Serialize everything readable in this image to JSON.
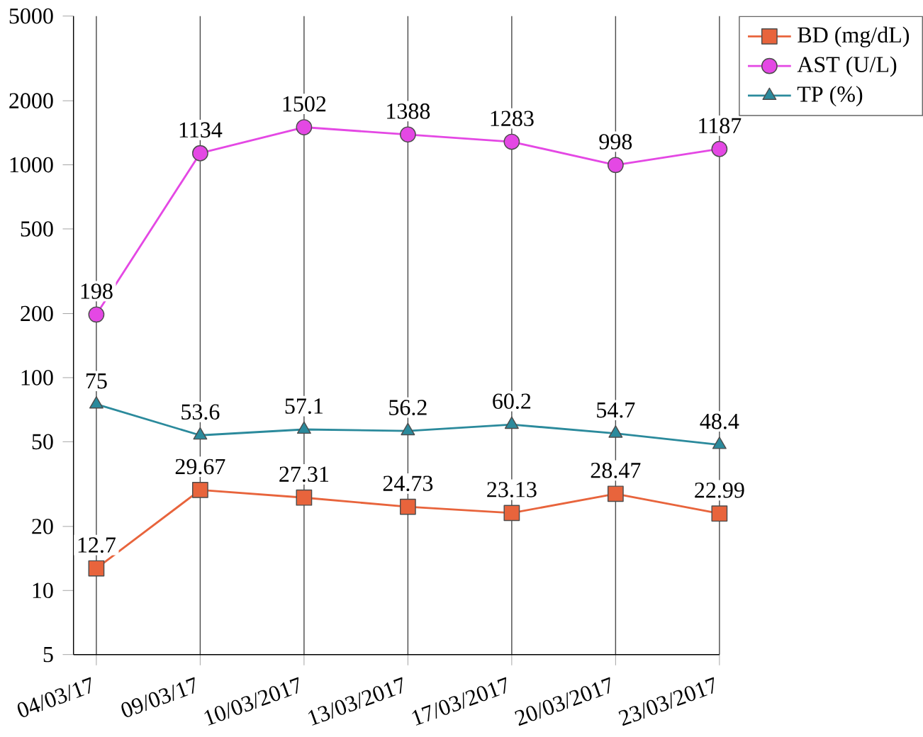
{
  "chart_data": {
    "type": "line",
    "categories": [
      "04/03/17",
      "09/03/17",
      "10/03/2017",
      "13/03/2017",
      "17/03/2017",
      "20/03/2017",
      "23/03/2017"
    ],
    "series": [
      {
        "name": "BD (mg/dL)",
        "color": "#e8643c",
        "marker": "square",
        "values": [
          12.7,
          29.67,
          27.31,
          24.73,
          23.13,
          28.47,
          22.99
        ]
      },
      {
        "name": "AST (U/L)",
        "color": "#e448e4",
        "marker": "circle",
        "values": [
          198,
          1134,
          1502,
          1388,
          1283,
          998,
          1187
        ]
      },
      {
        "name": "TP (%)",
        "color": "#2b8a9c",
        "marker": "triangle",
        "values": [
          75,
          53.6,
          57.1,
          56.2,
          60.2,
          54.7,
          48.4
        ]
      }
    ],
    "log": "y",
    "ylim": [
      5,
      5000
    ],
    "yticks": [
      5,
      10,
      20,
      50,
      100,
      200,
      500,
      1000,
      2000,
      5000
    ],
    "grid": "x",
    "legend": "top right",
    "data_labels": true,
    "line_style": "solid"
  }
}
